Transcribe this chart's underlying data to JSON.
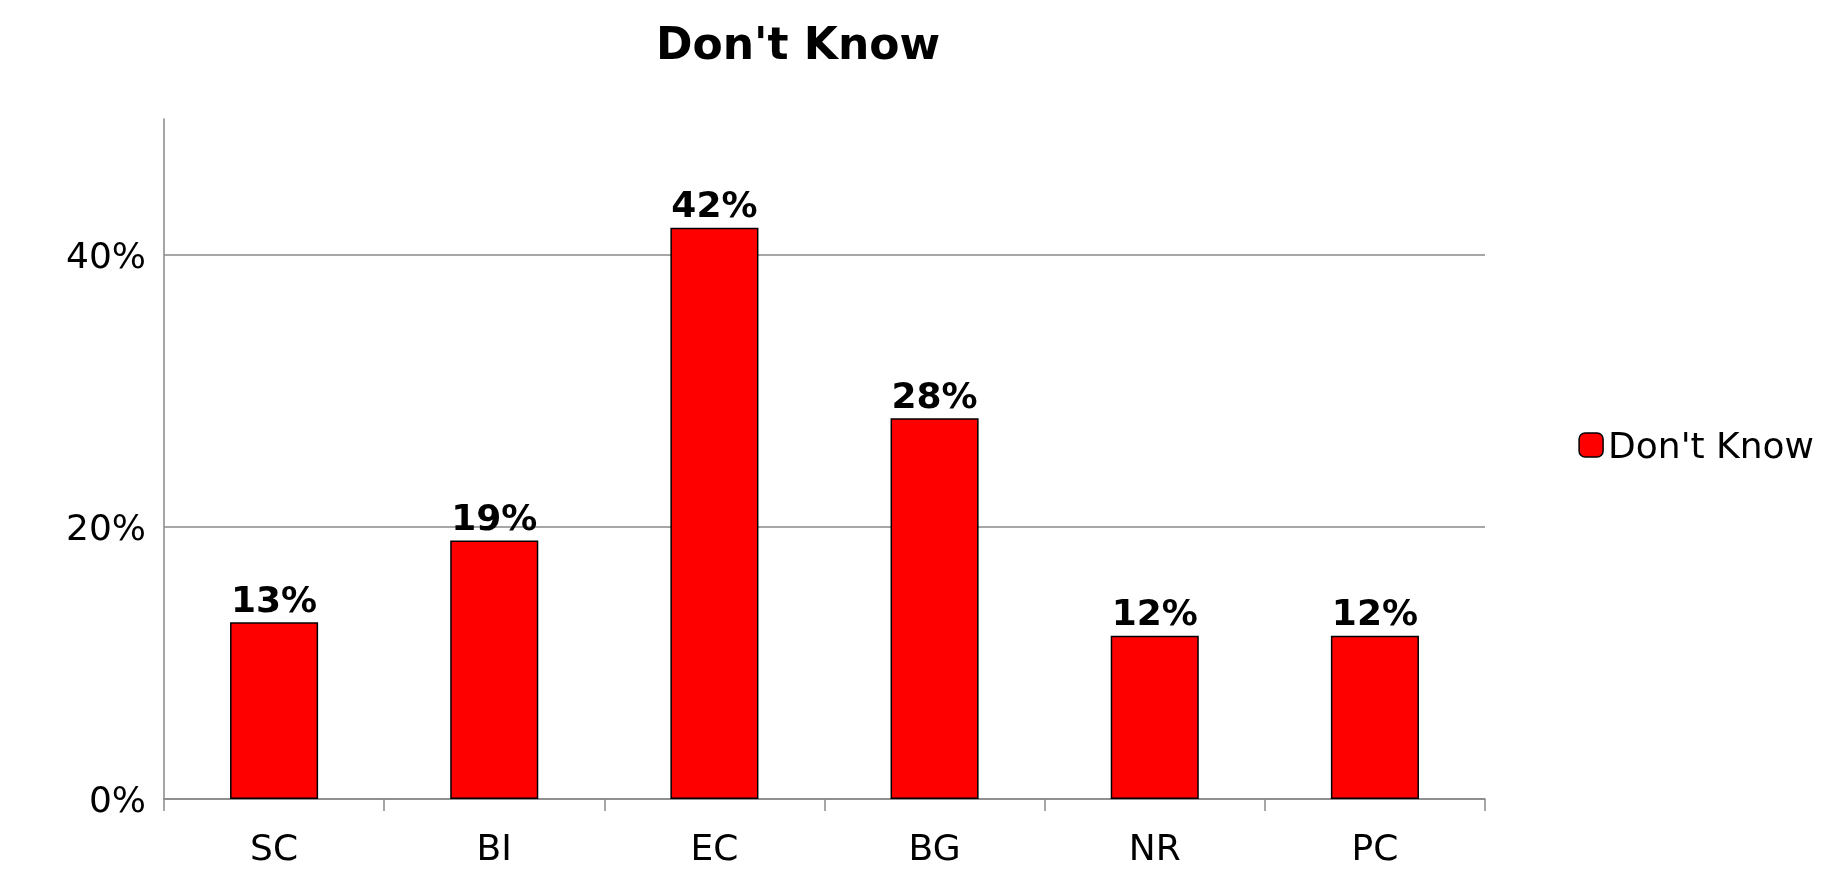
{
  "chart_data": {
    "type": "bar",
    "title": "Don't Know",
    "categories": [
      "SC",
      "BI",
      "EC",
      "BG",
      "NR",
      "PC"
    ],
    "series": [
      {
        "name": "Don't Know",
        "color": "#ff0000",
        "values": [
          13,
          19,
          42,
          28,
          12,
          12
        ],
        "value_labels": [
          "13%",
          "19%",
          "42%",
          "28%",
          "12%",
          "12%"
        ]
      }
    ],
    "ylim": [
      0,
      50
    ],
    "yticks": [
      {
        "value": 0,
        "label": "0%"
      },
      {
        "value": 20,
        "label": "20%"
      },
      {
        "value": 40,
        "label": "40%"
      }
    ],
    "grid": "y",
    "legend": "right"
  }
}
